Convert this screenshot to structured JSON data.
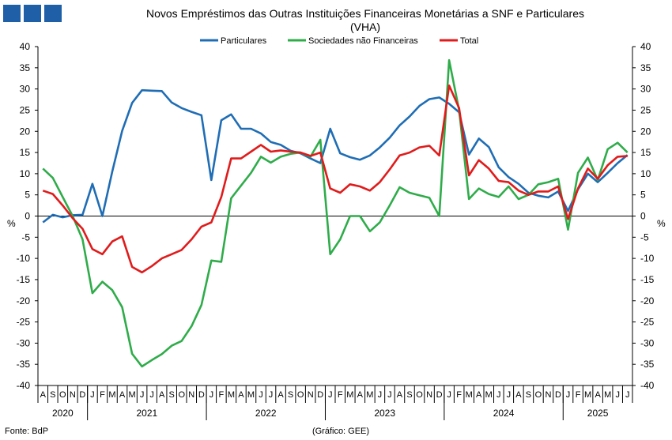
{
  "logo": {
    "color": "#1f5fa8"
  },
  "chart_data": {
    "type": "line",
    "title": "Novos Empréstimos das Outras Instituições Financeiras Monetárias a SNF e Particulares",
    "subtitle": "(VHA)",
    "ylabel_left": "%",
    "ylabel_right": "%",
    "ylim": [
      -40,
      40
    ],
    "yticks": [
      -40,
      -35,
      -30,
      -25,
      -20,
      -15,
      -10,
      -5,
      0,
      5,
      10,
      15,
      20,
      25,
      30,
      35,
      40
    ],
    "grid": false,
    "legend_position": "top",
    "x_months": [
      "A",
      "S",
      "O",
      "N",
      "D",
      "J",
      "F",
      "M",
      "A",
      "M",
      "J",
      "J",
      "A",
      "S",
      "O",
      "N",
      "D",
      "J",
      "F",
      "M",
      "A",
      "M",
      "J",
      "J",
      "A",
      "S",
      "O",
      "N",
      "D",
      "J",
      "F",
      "M",
      "A",
      "M",
      "J",
      "J",
      "A",
      "S",
      "O",
      "N",
      "D",
      "J",
      "F",
      "M",
      "A",
      "M",
      "J",
      "J",
      "A",
      "S",
      "O",
      "N",
      "D",
      "J",
      "F",
      "M",
      "A",
      "M",
      "J",
      "J"
    ],
    "x_years": [
      {
        "label": "2020",
        "start": 0,
        "end": 4
      },
      {
        "label": "2021",
        "start": 5,
        "end": 16
      },
      {
        "label": "2022",
        "start": 17,
        "end": 28
      },
      {
        "label": "2023",
        "start": 29,
        "end": 40
      },
      {
        "label": "2024",
        "start": 41,
        "end": 52
      },
      {
        "label": "2025",
        "start": 53,
        "end": 59
      }
    ],
    "series": [
      {
        "name": "Particulares",
        "color": "#1f6db5",
        "values": [
          -1.5,
          0.3,
          -0.3,
          0.2,
          0.3,
          7.6,
          0,
          10.5,
          20.1,
          26.7,
          29.7,
          29.6,
          29.5,
          26.8,
          25.5,
          24.6,
          23.8,
          8.5,
          22.6,
          24,
          20.6,
          20.6,
          19.5,
          17.5,
          16.8,
          15.4,
          14.8,
          13.6,
          12.5,
          20.6,
          14.8,
          13.9,
          13.3,
          14.3,
          16.2,
          18.5,
          21.4,
          23.5,
          26,
          27.6,
          28,
          26.5,
          24.5,
          14.5,
          18.3,
          16.3,
          11.5,
          9.2,
          7.6,
          5.5,
          4.8,
          4.4,
          5.8,
          1.2,
          6.3,
          10,
          8,
          10.2,
          12.5,
          14.4
        ]
      },
      {
        "name": "Sociedades não Financeiras",
        "color": "#2fac4a",
        "values": [
          11.2,
          9,
          4.5,
          0,
          -5.5,
          -18.2,
          -15.5,
          -17.5,
          -21.5,
          -32.5,
          -35.5,
          -34,
          -32.6,
          -30.6,
          -29.5,
          -26,
          -21,
          -10.5,
          -10.8,
          4.2,
          7.2,
          10.2,
          14,
          12.6,
          14,
          14.7,
          15,
          14,
          18,
          -9,
          -5.5,
          0,
          0,
          -3.6,
          -1.5,
          2.5,
          6.8,
          5.5,
          4.9,
          4.3,
          0,
          36.8,
          25,
          4,
          6.5,
          5.2,
          4.5,
          7,
          4,
          5,
          7.5,
          8,
          8.8,
          -3.2,
          10.2,
          13.8,
          8.5,
          15.8,
          17.3,
          15
        ]
      },
      {
        "name": "Total",
        "color": "#e01b1b",
        "values": [
          6,
          5.2,
          2.5,
          -0.5,
          -3,
          -7.8,
          -9,
          -6,
          -4.8,
          -12,
          -13.3,
          -11.8,
          -10,
          -9,
          -8,
          -5.5,
          -2.5,
          -1.5,
          4.5,
          13.6,
          13.6,
          15.2,
          16.8,
          15.2,
          15.5,
          15.2,
          15,
          14.2,
          15,
          6.5,
          5.5,
          7.5,
          7,
          6,
          8,
          11,
          14.3,
          15,
          16.2,
          16.6,
          14.3,
          30.8,
          25.5,
          9.6,
          13.2,
          11.2,
          8.3,
          8,
          6,
          5,
          5.8,
          5.8,
          7,
          -0.7,
          6.5,
          11.2,
          8.8,
          12,
          14,
          14.2
        ]
      }
    ]
  },
  "footer": {
    "source": "Fonte: BdP",
    "credit": "(Gráfico: GEE)"
  }
}
